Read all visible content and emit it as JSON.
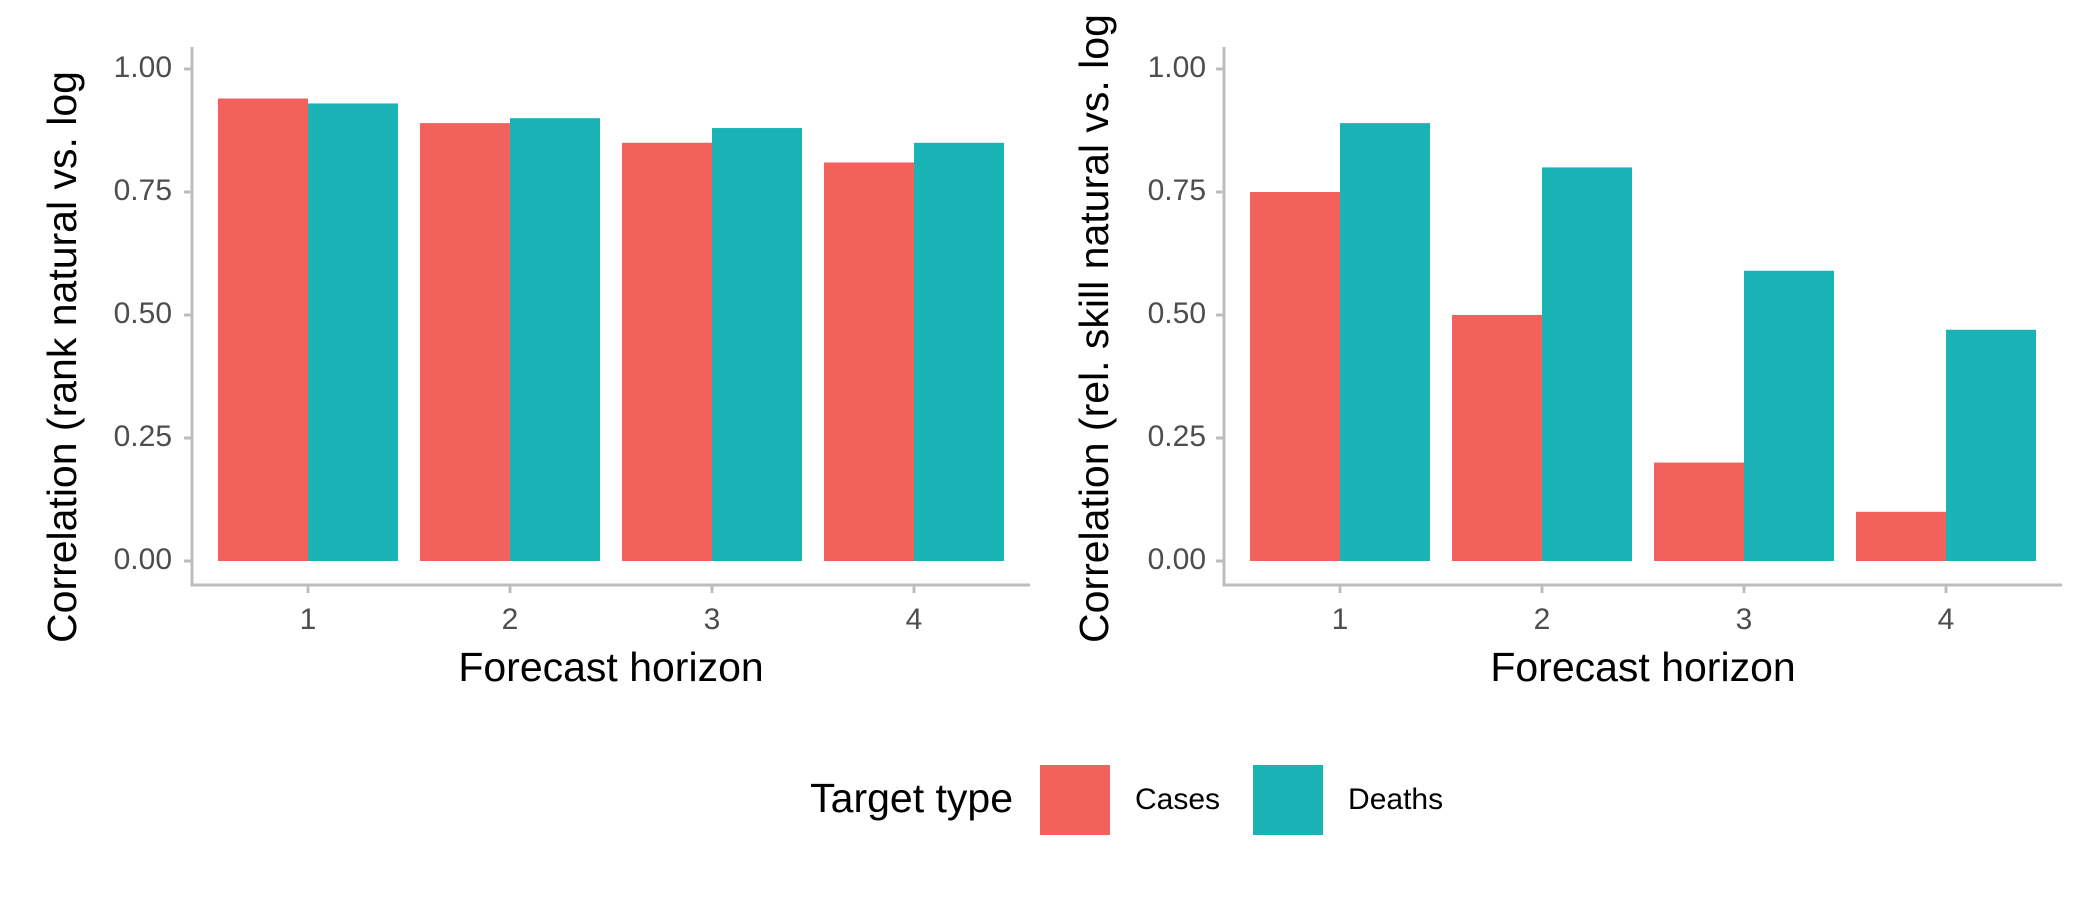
{
  "chart_data": [
    {
      "type": "bar",
      "xlabel": "Forecast horizon",
      "ylabel": "Correlation (rank natural vs. log",
      "legend_title": "Target type",
      "categories": [
        "1",
        "2",
        "3",
        "4"
      ],
      "series": [
        {
          "name": "Cases",
          "color": "#f2615c",
          "values": [
            0.94,
            0.89,
            0.85,
            0.81
          ]
        },
        {
          "name": "Deaths",
          "color": "#19b3b6",
          "values": [
            0.93,
            0.9,
            0.88,
            0.85
          ]
        }
      ],
      "ylim": [
        0,
        1
      ],
      "yticks": [
        {
          "value": 0,
          "label": "0.00"
        },
        {
          "value": 0.25,
          "label": "0.25"
        },
        {
          "value": 0.5,
          "label": "0.50"
        },
        {
          "value": 0.75,
          "label": "0.75"
        },
        {
          "value": 1,
          "label": "1.00"
        }
      ]
    },
    {
      "type": "bar",
      "xlabel": "Forecast horizon",
      "ylabel": "Correlation (rel. skill natural vs. log",
      "categories": [
        "1",
        "2",
        "3",
        "4"
      ],
      "series": [
        {
          "name": "Cases",
          "color": "#f2615c",
          "values": [
            0.75,
            0.5,
            0.2,
            0.1
          ]
        },
        {
          "name": "Deaths",
          "color": "#19b3b6",
          "values": [
            0.89,
            0.8,
            0.59,
            0.47
          ]
        }
      ],
      "ylim": [
        0,
        1
      ],
      "yticks": [
        {
          "value": 0,
          "label": "0.00"
        },
        {
          "value": 0.25,
          "label": "0.25"
        },
        {
          "value": 0.5,
          "label": "0.50"
        },
        {
          "value": 0.75,
          "label": "0.75"
        },
        {
          "value": 1,
          "label": "1.00"
        }
      ]
    }
  ]
}
